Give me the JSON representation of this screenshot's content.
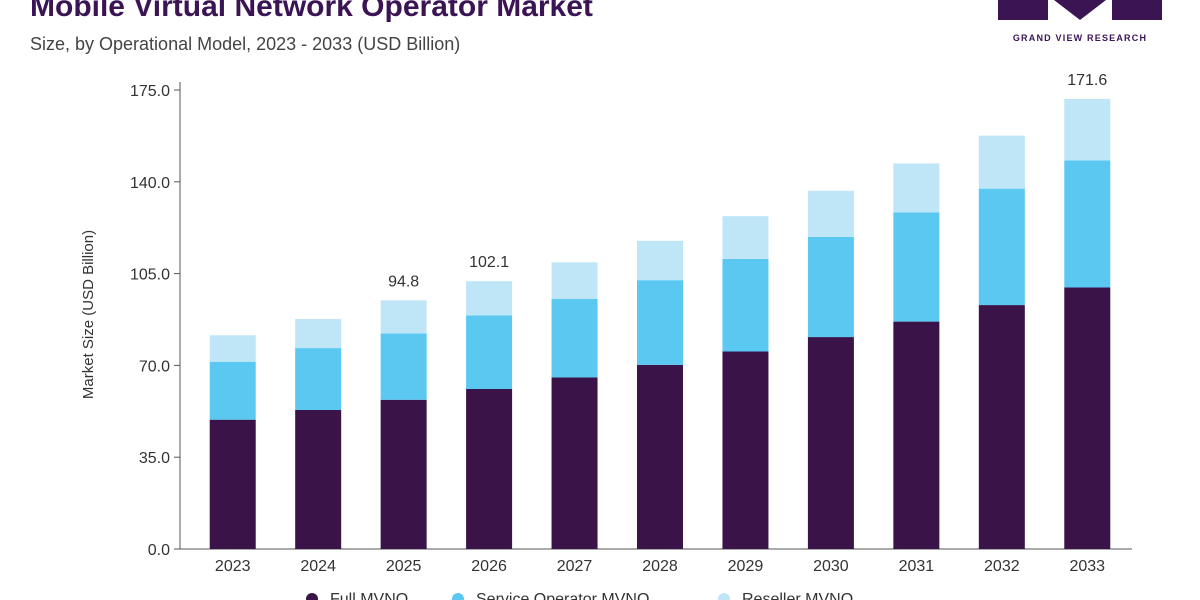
{
  "header": {
    "title": "Mobile Virtual Network Operator Market",
    "subtitle": "Size, by Operational Model, 2023 - 2033 (USD Billion)"
  },
  "logo": {
    "text": "GRAND VIEW RESEARCH",
    "color": "#3b1454"
  },
  "chart_data": {
    "type": "bar",
    "stacked": true,
    "categories": [
      "2023",
      "2024",
      "2025",
      "2026",
      "2027",
      "2028",
      "2029",
      "2030",
      "2031",
      "2032",
      "2033"
    ],
    "series": [
      {
        "name": "Full MVNO",
        "color": "#3a1348",
        "values": [
          49.3,
          53.0,
          56.9,
          61.0,
          65.4,
          70.2,
          75.3,
          80.8,
          86.7,
          93.0,
          99.7
        ]
      },
      {
        "name": "Service Operator MVNO",
        "color": "#5bc8f2",
        "values": [
          22.1,
          23.6,
          25.3,
          28.1,
          30.0,
          32.3,
          35.3,
          38.2,
          41.6,
          44.4,
          48.5
        ]
      },
      {
        "name": "Reseller MVNO",
        "color": "#bfe6f7",
        "values": [
          10.1,
          11.1,
          12.6,
          13.0,
          13.9,
          15.0,
          16.3,
          17.6,
          18.7,
          20.2,
          23.4
        ]
      }
    ],
    "totals_labels": [
      {
        "category": "2025",
        "text": "94.8"
      },
      {
        "category": "2026",
        "text": "102.1"
      },
      {
        "category": "2033",
        "text": "171.6"
      }
    ],
    "yticks": [
      "0.0",
      "35.0",
      "70.0",
      "105.0",
      "140.0",
      "175.0"
    ],
    "ylim": [
      0,
      175
    ],
    "ylabel": "Market Size (USD Billion)",
    "xlabel": "",
    "legend_position": "bottom",
    "grid": false
  }
}
